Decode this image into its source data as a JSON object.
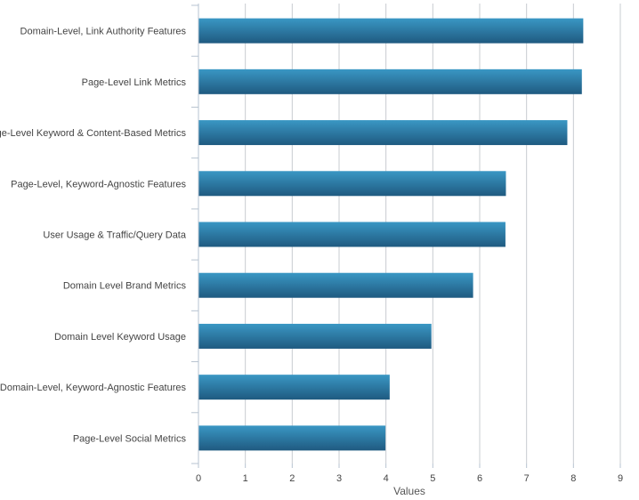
{
  "chart_data": {
    "type": "bar",
    "orientation": "horizontal",
    "categories": [
      "Domain-Level, Link Authority Features",
      "Page-Level Link Metrics",
      "Page-Level Keyword & Content-Based Metrics",
      "Page-Level, Keyword-Agnostic Features",
      "User Usage & Traffic/Query Data",
      "Domain Level Brand Metrics",
      "Domain Level Keyword Usage",
      "Domain-Level, Keyword-Agnostic Features",
      "Page-Level Social Metrics"
    ],
    "values": [
      8.2,
      8.17,
      7.86,
      6.55,
      6.54,
      5.85,
      4.96,
      4.07,
      3.98
    ],
    "xlabel": "Values",
    "ylabel": "",
    "xlim": [
      0,
      9
    ],
    "xticks": [
      "0",
      "1",
      "2",
      "3",
      "4",
      "5",
      "6",
      "7",
      "8",
      "9"
    ],
    "grid": true,
    "legend": "none",
    "colors": {
      "bar_top": "#3a97c4",
      "bar_bottom": "#1f5a80",
      "grid": "#c8ccd1",
      "axis": "#b7c3d0"
    }
  }
}
